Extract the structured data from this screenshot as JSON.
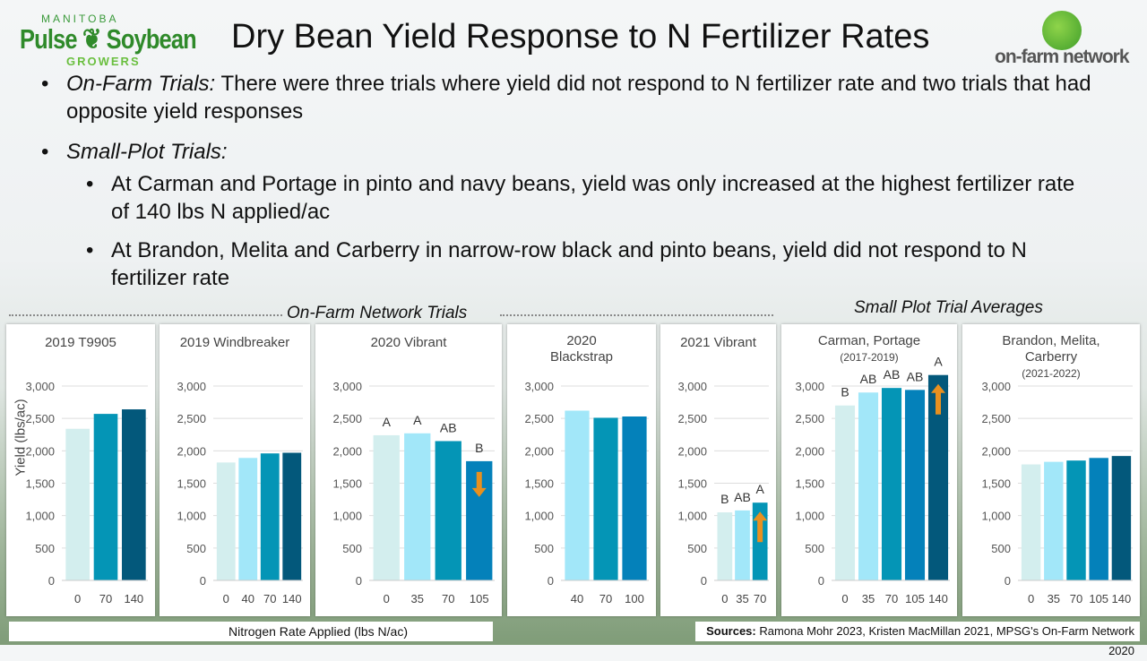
{
  "logos": {
    "left": "MANITOBA Pulse Soybean GROWERS",
    "right": "on-farm network"
  },
  "title": "Dry Bean Yield Response to N Fertilizer Rates",
  "bullets": [
    {
      "label": "On-Farm Trials:",
      "text": " There were three trials where yield did not respond to N fertilizer rate and two trials that had opposite yield responses"
    },
    {
      "label": "Small-Plot Trials:",
      "text": ""
    }
  ],
  "sub_bullets": [
    "At Carman and Portage in pinto and navy beans, yield was only increased at the highest fertilizer rate of 140 lbs N applied/ac",
    "At Brandon, Melita and Carberry in narrow-row black and pinto beans, yield did not respond to N fertilizer rate"
  ],
  "section_labels": {
    "on_farm": "On-Farm Network Trials",
    "small_plot": "Small Plot Trial Averages"
  },
  "footer": {
    "xlabel": "Nitrogen Rate Applied (lbs N/ac)",
    "sources_label": "Sources:",
    "sources": " Ramona Mohr 2023, Kristen MacMillan 2021, MPSG's On-Farm Network 2020"
  },
  "colors": {
    "c0": "#d3eeee",
    "c1": "#a2e7f9",
    "c2": "#0495b6",
    "c3": "#0481ba",
    "c4": "#03587b",
    "arrow": "#e8901f"
  },
  "chart_data": [
    {
      "type": "bar",
      "title": "2019 T9905",
      "subtitle": "",
      "ylabel": "Yield (lbs/ac)",
      "ylim": [
        0,
        3000
      ],
      "yticks": [
        "0",
        "500",
        "1,000",
        "1,500",
        "2,000",
        "2,500",
        "3,000"
      ],
      "categories": [
        "0",
        "70",
        "140"
      ],
      "values": [
        2340,
        2570,
        2640
      ],
      "colors": [
        "c0",
        "c2",
        "c4"
      ],
      "letters": [],
      "arrow": null
    },
    {
      "type": "bar",
      "title": "2019 Windbreaker",
      "subtitle": "",
      "ylim": [
        0,
        3000
      ],
      "yticks": [
        "0",
        "500",
        "1,000",
        "1,500",
        "2,000",
        "2,500",
        "3,000"
      ],
      "categories": [
        "0",
        "40",
        "70",
        "140"
      ],
      "values": [
        1820,
        1890,
        1960,
        1970
      ],
      "colors": [
        "c0",
        "c1",
        "c2",
        "c4"
      ],
      "letters": [],
      "arrow": null
    },
    {
      "type": "bar",
      "title": "2020 Vibrant",
      "subtitle": "",
      "ylim": [
        0,
        3000
      ],
      "yticks": [
        "0",
        "500",
        "1,000",
        "1,500",
        "2,000",
        "2,500",
        "3,000"
      ],
      "categories": [
        "0",
        "35",
        "70",
        "105"
      ],
      "values": [
        2240,
        2270,
        2150,
        1840
      ],
      "colors": [
        "c0",
        "c1",
        "c2",
        "c3"
      ],
      "letters": [
        "A",
        "A",
        "AB",
        "B"
      ],
      "arrow": "down"
    },
    {
      "type": "bar",
      "title": "2020 Blackstrap",
      "subtitle": "",
      "ylim": [
        0,
        3000
      ],
      "yticks": [
        "0",
        "500",
        "1,000",
        "1,500",
        "2,000",
        "2,500",
        "3,000"
      ],
      "categories": [
        "40",
        "70",
        "100"
      ],
      "values": [
        2620,
        2510,
        2530
      ],
      "colors": [
        "c1",
        "c2",
        "c3"
      ],
      "letters": [],
      "arrow": null
    },
    {
      "type": "bar",
      "title": "2021 Vibrant",
      "subtitle": "",
      "ylim": [
        0,
        3000
      ],
      "yticks": [
        "0",
        "500",
        "1,000",
        "1,500",
        "2,000",
        "2,500",
        "3,000"
      ],
      "categories": [
        "0",
        "35",
        "70"
      ],
      "values": [
        1050,
        1080,
        1200
      ],
      "colors": [
        "c0",
        "c1",
        "c2"
      ],
      "letters": [
        "B",
        "AB",
        "A"
      ],
      "arrow": "up"
    },
    {
      "type": "bar",
      "title": "Carman, Portage",
      "subtitle": "(2017-2019)",
      "ylim": [
        0,
        3000
      ],
      "yticks": [
        "0",
        "500",
        "1,000",
        "1,500",
        "2,000",
        "2,500",
        "3,000"
      ],
      "categories": [
        "0",
        "35",
        "70",
        "105",
        "140"
      ],
      "values": [
        2700,
        2900,
        2970,
        2940,
        3170
      ],
      "colors": [
        "c0",
        "c1",
        "c2",
        "c3",
        "c4"
      ],
      "letters": [
        "B",
        "AB",
        "AB",
        "AB",
        "A"
      ],
      "arrow": "up"
    },
    {
      "type": "bar",
      "title": "Brandon, Melita, Carberry",
      "subtitle": "(2021-2022)",
      "ylim": [
        0,
        3000
      ],
      "yticks": [
        "0",
        "500",
        "1,000",
        "1,500",
        "2,000",
        "2,500",
        "3,000"
      ],
      "categories": [
        "0",
        "35",
        "70",
        "105",
        "140"
      ],
      "values": [
        1790,
        1830,
        1850,
        1890,
        1920
      ],
      "colors": [
        "c0",
        "c1",
        "c2",
        "c3",
        "c4"
      ],
      "letters": [],
      "arrow": null
    }
  ]
}
